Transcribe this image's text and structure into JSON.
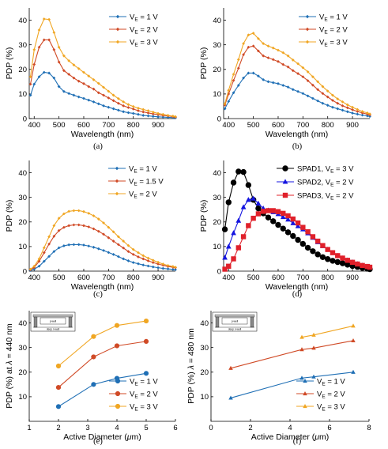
{
  "colors": {
    "blue": "#1f6fb5",
    "red": "#d04a26",
    "yellow": "#f0a623",
    "black": "#000000",
    "pure_blue": "#1414e0",
    "pure_red": "#e0202a"
  },
  "captions": [
    "(a)",
    "(b)",
    "(c)",
    "(d)",
    "(e)",
    "(f)"
  ],
  "inset": {
    "label_pwell": "p-well",
    "label_deep": "deep n-well"
  },
  "chart_data": [
    {
      "id": "a",
      "type": "line",
      "xlabel": "Wavelength (nm)",
      "ylabel": "PDP (%)",
      "xlim": [
        380,
        970
      ],
      "ylim": [
        0,
        45
      ],
      "xticks": [
        400,
        500,
        600,
        700,
        800,
        900
      ],
      "yticks": [
        0,
        10,
        20,
        30,
        40
      ],
      "x": [
        385,
        400,
        420,
        440,
        460,
        480,
        500,
        520,
        540,
        560,
        580,
        600,
        620,
        640,
        660,
        680,
        700,
        720,
        740,
        760,
        780,
        800,
        820,
        840,
        860,
        880,
        900,
        920,
        940,
        960,
        970
      ],
      "series": [
        {
          "name": "V",
          "sub": "E",
          "suffix": " = 1 V",
          "color": "blue",
          "marker": "diamond",
          "values": [
            9.5,
            14,
            17,
            18.8,
            18.5,
            16.5,
            13,
            11,
            10.2,
            9.5,
            8.8,
            8.2,
            7.5,
            6.8,
            6.0,
            5.2,
            4.6,
            4.0,
            3.4,
            2.8,
            2.4,
            2.1,
            1.7,
            1.3,
            1.1,
            0.9,
            0.7,
            0.6,
            0.5,
            0.4,
            0.3
          ]
        },
        {
          "name": "V",
          "sub": "E",
          "suffix": " = 2 V",
          "color": "red",
          "marker": "diamond",
          "values": [
            14,
            22,
            29,
            32,
            32,
            28,
            23,
            19.5,
            18,
            16.5,
            15.2,
            14.2,
            13,
            12,
            10.5,
            9.5,
            8.4,
            7.3,
            6.2,
            5.2,
            4.5,
            3.9,
            3.2,
            2.7,
            2.3,
            1.9,
            1.6,
            1.3,
            1.1,
            0.8,
            0.6
          ]
        },
        {
          "name": "V",
          "sub": "E",
          "suffix": " = 3 V",
          "color": "yellow",
          "marker": "diamond",
          "values": [
            17,
            28,
            36,
            40.5,
            40.3,
            35,
            29,
            25.5,
            23.5,
            21.8,
            20.3,
            18.8,
            17.3,
            15.8,
            14.3,
            12.7,
            11.1,
            9.5,
            8.1,
            6.8,
            5.7,
            4.9,
            4.2,
            3.7,
            3.2,
            2.6,
            2.1,
            1.7,
            1.3,
            1.0,
            0.8
          ]
        }
      ]
    },
    {
      "id": "b",
      "type": "line",
      "xlabel": "Wavelength (nm)",
      "ylabel": "PDP (%)",
      "xlim": [
        380,
        970
      ],
      "ylim": [
        0,
        45
      ],
      "xticks": [
        400,
        500,
        600,
        700,
        800,
        900
      ],
      "yticks": [
        0,
        10,
        20,
        30,
        40
      ],
      "x": [
        385,
        400,
        420,
        440,
        460,
        480,
        500,
        520,
        540,
        560,
        580,
        600,
        620,
        640,
        660,
        680,
        700,
        720,
        740,
        760,
        780,
        800,
        820,
        840,
        860,
        880,
        900,
        920,
        940,
        960,
        970
      ],
      "series": [
        {
          "name": "V",
          "sub": "E",
          "suffix": " = 1 V",
          "color": "blue",
          "marker": "diamond",
          "values": [
            4,
            7,
            10.5,
            13.5,
            16.5,
            18.5,
            18.5,
            17.3,
            15.8,
            15,
            14.6,
            14.2,
            13.5,
            12.8,
            11.8,
            11,
            10.2,
            9.2,
            8.2,
            7.2,
            6.2,
            5.4,
            4.6,
            4.0,
            3.4,
            2.8,
            2.2,
            1.8,
            1.4,
            1.1,
            0.9
          ]
        },
        {
          "name": "V",
          "sub": "E",
          "suffix": " = 2 V",
          "color": "red",
          "marker": "diamond",
          "values": [
            5.5,
            10,
            15.5,
            20.5,
            26,
            29,
            29.5,
            27.5,
            25.5,
            24.7,
            24,
            23.2,
            22,
            21,
            19.5,
            18.3,
            17,
            15.4,
            13.6,
            11.8,
            10.2,
            8.8,
            7.4,
            6.2,
            5.2,
            4.4,
            3.6,
            2.9,
            2.3,
            1.8,
            1.5
          ]
        },
        {
          "name": "V",
          "sub": "E",
          "suffix": " = 3 V",
          "color": "yellow",
          "marker": "diamond",
          "values": [
            6,
            11.5,
            18,
            24,
            30.5,
            34,
            34.7,
            32.5,
            30.5,
            29.5,
            28.7,
            27.8,
            26.8,
            25.5,
            23.8,
            22.3,
            20.7,
            19,
            17,
            15,
            13,
            11.2,
            9.5,
            8,
            6.8,
            5.6,
            4.6,
            3.7,
            2.9,
            2.3,
            1.9
          ]
        }
      ]
    },
    {
      "id": "c",
      "type": "line",
      "xlabel": "Wavelength (nm)",
      "ylabel": "PDP (%)",
      "xlim": [
        380,
        970
      ],
      "ylim": [
        0,
        45
      ],
      "xticks": [
        400,
        500,
        600,
        700,
        800,
        900
      ],
      "yticks": [
        0,
        10,
        20,
        30,
        40
      ],
      "x": [
        385,
        400,
        420,
        440,
        460,
        480,
        500,
        520,
        540,
        560,
        580,
        600,
        620,
        640,
        660,
        680,
        700,
        720,
        740,
        760,
        780,
        800,
        820,
        840,
        860,
        880,
        900,
        920,
        940,
        960,
        970
      ],
      "series": [
        {
          "name": "V",
          "sub": "E",
          "suffix": " = 1 V",
          "color": "blue",
          "marker": "diamond",
          "values": [
            0.3,
            0.8,
            2,
            4,
            6,
            8,
            9.5,
            10.3,
            10.7,
            10.8,
            10.8,
            10.6,
            10.2,
            9.7,
            9.1,
            8.4,
            7.6,
            6.8,
            5.9,
            5.0,
            4.2,
            3.5,
            3.0,
            2.5,
            2.1,
            1.7,
            1.4,
            1.1,
            0.9,
            0.7,
            0.6
          ]
        },
        {
          "name": "V",
          "sub": "E",
          "suffix": " = 1.5 V",
          "color": "red",
          "marker": "diamond",
          "values": [
            0.6,
            1.5,
            4,
            7.5,
            11,
            14.2,
            16.5,
            17.8,
            18.5,
            18.8,
            18.8,
            18.5,
            18,
            17.2,
            16.2,
            15,
            13.6,
            12.2,
            10.8,
            9.4,
            8,
            6.8,
            5.8,
            5,
            4.2,
            3.5,
            2.9,
            2.4,
            1.9,
            1.6,
            1.4
          ]
        },
        {
          "name": "V",
          "sub": "E",
          "suffix": " = 2 V",
          "color": "yellow",
          "marker": "diamond",
          "values": [
            0.8,
            2,
            5,
            9.5,
            14,
            18.5,
            21.5,
            23.3,
            24.3,
            24.6,
            24.6,
            24.2,
            23.5,
            22.5,
            21.2,
            19.6,
            17.8,
            16,
            14,
            12.2,
            10.4,
            8.8,
            7.5,
            6.3,
            5.3,
            4.4,
            3.6,
            2.9,
            2.3,
            1.9,
            1.6
          ]
        }
      ]
    },
    {
      "id": "d",
      "type": "line",
      "xlabel": "Wavelength (nm)",
      "ylabel": "PDP (%)",
      "xlim": [
        380,
        970
      ],
      "ylim": [
        0,
        45
      ],
      "xticks": [
        400,
        500,
        600,
        700,
        800,
        900
      ],
      "yticks": [
        0,
        10,
        20,
        30,
        40
      ],
      "x": [
        385,
        400,
        420,
        440,
        460,
        480,
        500,
        520,
        540,
        560,
        580,
        600,
        620,
        640,
        660,
        680,
        700,
        720,
        740,
        760,
        780,
        800,
        820,
        840,
        860,
        880,
        900,
        920,
        940,
        960,
        970
      ],
      "series": [
        {
          "name": "SPAD1, V",
          "sub": "E",
          "suffix": " = 3 V",
          "color": "black",
          "marker": "circle",
          "values": [
            17,
            28,
            36,
            40.5,
            40.3,
            35,
            29,
            25.5,
            23.5,
            21.8,
            20.3,
            18.8,
            17.3,
            15.8,
            14.3,
            12.7,
            11.1,
            9.5,
            8.1,
            6.8,
            5.7,
            4.9,
            4.2,
            3.7,
            3.2,
            2.6,
            2.1,
            1.7,
            1.3,
            1.0,
            0.8
          ]
        },
        {
          "name": "SPAD2, V",
          "sub": "E",
          "suffix": " = 2 V",
          "color": "pure_blue",
          "marker": "triangle",
          "values": [
            5.5,
            10,
            15.5,
            20.5,
            26,
            29,
            29.5,
            27.5,
            25.5,
            24.7,
            24,
            23.2,
            22,
            21,
            19.5,
            18.3,
            17,
            15.4,
            13.6,
            11.8,
            10.2,
            8.8,
            7.4,
            6.2,
            5.2,
            4.4,
            3.6,
            2.9,
            2.3,
            1.8,
            1.5
          ]
        },
        {
          "name": "SPAD3, V",
          "sub": "E",
          "suffix": " = 2 V",
          "color": "pure_red",
          "marker": "square",
          "values": [
            0.8,
            2,
            5,
            9.5,
            14,
            18.5,
            21.5,
            23.3,
            24.3,
            24.6,
            24.6,
            24.2,
            23.5,
            22.5,
            21.2,
            19.6,
            17.8,
            16,
            14,
            12.2,
            10.4,
            8.8,
            7.5,
            6.3,
            5.3,
            4.4,
            3.6,
            2.9,
            2.3,
            1.9,
            1.6
          ]
        }
      ]
    },
    {
      "id": "e",
      "type": "line",
      "xlabel": "Active Diameter (",
      "xlabel_mu": "μ",
      "xlabel_end": "m)",
      "ylabel": "PDP (%) at ",
      "ylabel_sym": "λ",
      "ylabel_end": " = 440 nm",
      "xlim": [
        1,
        6
      ],
      "ylim": [
        0,
        45
      ],
      "xticks": [
        1,
        2,
        3,
        4,
        5,
        6
      ],
      "yticks": [
        10,
        20,
        30,
        40
      ],
      "x": [
        2,
        3.2,
        4,
        5
      ],
      "series": [
        {
          "name": "V",
          "sub": "E",
          "suffix": " = 1 V",
          "color": "blue",
          "marker": "circle",
          "values": [
            6,
            15,
            17.5,
            19.5
          ]
        },
        {
          "name": "V",
          "sub": "E",
          "suffix": " = 2 V",
          "color": "red",
          "marker": "circle",
          "values": [
            13.8,
            26.2,
            30.7,
            32.5
          ]
        },
        {
          "name": "V",
          "sub": "E",
          "suffix": " = 3 V",
          "color": "yellow",
          "marker": "circle",
          "values": [
            22.5,
            34.5,
            39,
            40.8
          ]
        }
      ]
    },
    {
      "id": "f",
      "type": "line",
      "xlabel": "Active Diameter (",
      "xlabel_mu": "μ",
      "xlabel_end": "m)",
      "ylabel": "PDP (%) ",
      "ylabel_sym": "λ",
      "ylabel_end": " = 480 nm",
      "xlim": [
        0,
        8
      ],
      "ylim": [
        0,
        45
      ],
      "xticks": [
        0,
        2,
        4,
        6,
        8
      ],
      "yticks": [
        10,
        20,
        30,
        40
      ],
      "x": [
        1,
        4.6,
        5.2,
        7.2
      ],
      "series": [
        {
          "name": "V",
          "sub": "E",
          "suffix": " = 1 V",
          "color": "blue",
          "marker": "triangle",
          "values": [
            9.5,
            17.6,
            18.1,
            20
          ]
        },
        {
          "name": "V",
          "sub": "E",
          "suffix": " = 2 V",
          "color": "red",
          "marker": "triangle",
          "values": [
            21.6,
            29.2,
            29.8,
            32.8
          ]
        },
        {
          "name": "V",
          "sub": "E",
          "suffix": " = 3 V",
          "color": "yellow",
          "marker": "triangle",
          "values": [
            null,
            34.2,
            35.1,
            38.8
          ]
        }
      ]
    }
  ]
}
